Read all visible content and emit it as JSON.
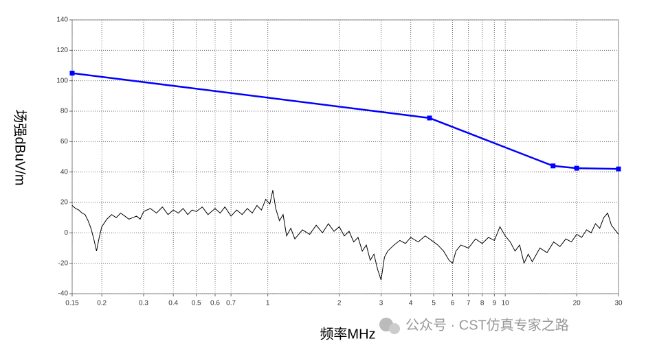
{
  "chart_data": {
    "type": "line",
    "xlog": true,
    "grid": true,
    "ylabel": "场强dBuV/m",
    "xlabel": "频率MHz",
    "annotation": "公众号 · CST仿真专家之路",
    "xlim": [
      0.15,
      30
    ],
    "ylim": [
      -40,
      140
    ],
    "xticks": [
      0.15,
      0.2,
      0.3,
      0.4,
      0.5,
      0.6,
      0.7,
      1,
      2,
      3,
      4,
      5,
      6,
      7,
      8,
      9,
      10,
      20,
      30
    ],
    "yticks": [
      -40,
      -20,
      0,
      20,
      40,
      60,
      80,
      100,
      120,
      140
    ],
    "series": [
      {
        "color": "#0000ff",
        "markers": true,
        "x": [
          0.15,
          4.8,
          15.9,
          20,
          30
        ],
        "values": [
          105,
          75.5,
          44,
          42.5,
          42
        ]
      },
      {
        "color": "#000000",
        "markers": false,
        "x": [
          0.15,
          0.155,
          0.16,
          0.165,
          0.17,
          0.175,
          0.18,
          0.185,
          0.19,
          0.195,
          0.2,
          0.21,
          0.22,
          0.23,
          0.24,
          0.25,
          0.26,
          0.27,
          0.28,
          0.29,
          0.3,
          0.32,
          0.34,
          0.36,
          0.38,
          0.4,
          0.42,
          0.44,
          0.46,
          0.48,
          0.5,
          0.53,
          0.56,
          0.6,
          0.63,
          0.66,
          0.7,
          0.74,
          0.78,
          0.82,
          0.86,
          0.9,
          0.94,
          0.98,
          1.02,
          1.05,
          1.08,
          1.12,
          1.16,
          1.2,
          1.25,
          1.3,
          1.4,
          1.5,
          1.6,
          1.7,
          1.8,
          1.9,
          2.0,
          2.1,
          2.2,
          2.3,
          2.4,
          2.5,
          2.6,
          2.7,
          2.8,
          2.9,
          3.0,
          3.1,
          3.2,
          3.4,
          3.6,
          3.8,
          4.0,
          4.3,
          4.6,
          4.9,
          5.2,
          5.5,
          5.8,
          6.0,
          6.2,
          6.5,
          7.0,
          7.5,
          8.0,
          8.5,
          9.0,
          9.5,
          10,
          10.5,
          11,
          11.5,
          12,
          12.5,
          13,
          14,
          15,
          16,
          17,
          18,
          19,
          20,
          21,
          22,
          23,
          24,
          25,
          26,
          27,
          28,
          29,
          30
        ],
        "values": [
          18,
          16,
          15,
          13,
          12,
          8,
          3,
          -4,
          -12,
          -3,
          4,
          9,
          12,
          10,
          13,
          11,
          9,
          10,
          11,
          9,
          14,
          16,
          13,
          17,
          12,
          15,
          13,
          16,
          12,
          15,
          14,
          17,
          12,
          16,
          13,
          17,
          11,
          15,
          12,
          16,
          13,
          18,
          15,
          22,
          19,
          28,
          16,
          8,
          12,
          -2,
          3,
          -4,
          2,
          -1,
          5,
          0,
          6,
          1,
          4,
          -2,
          1,
          -6,
          -3,
          -12,
          -8,
          -18,
          -14,
          -24,
          -31,
          -16,
          -12,
          -8,
          -5,
          -7,
          -3,
          -6,
          -2,
          -5,
          -8,
          -12,
          -18,
          -20,
          -12,
          -8,
          -10,
          -4,
          -7,
          -3,
          -5,
          4,
          -2,
          -6,
          -12,
          -8,
          -20,
          -14,
          -19,
          -10,
          -13,
          -6,
          -9,
          -4,
          -6,
          -1,
          -3,
          2,
          0,
          6,
          3,
          10,
          13,
          5,
          2,
          -1
        ]
      }
    ]
  }
}
